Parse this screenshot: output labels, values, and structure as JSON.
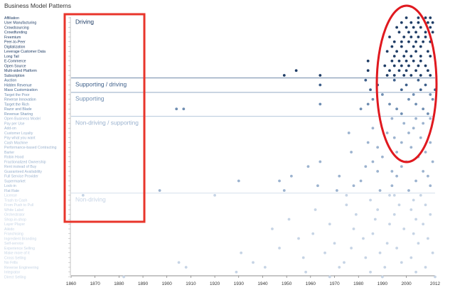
{
  "chart_data": {
    "type": "scatter",
    "title": "Business Model Patterns",
    "xlim": [
      1860,
      2012
    ],
    "x_ticks": [
      1860,
      1870,
      1880,
      1890,
      1900,
      1910,
      1920,
      1930,
      1940,
      1950,
      1960,
      1970,
      1980,
      1990,
      2000,
      2012
    ],
    "patterns": [
      "Affiliation",
      "User Manufacturing",
      "Crowdsourcing",
      "Crowdfunding",
      "Freemium",
      "Peer-to-Peer",
      "Digitalization",
      "Leverage Customer Data",
      "Long Tail",
      "E-Commerce",
      "Open Source",
      "Multi-sided Platform",
      "Subscription",
      "Auction",
      "Hidden Revenue",
      "Mass Customization",
      "Target the Poor",
      "Reverse Innovation",
      "Target the Rich",
      "Razor and Blade",
      "Revenue Sharing",
      "Open Business Model",
      "Pay per Use",
      "Add-on",
      "Customer Loyalty",
      "Pay what you want",
      "Cash Machine",
      "Performance-based Contracting",
      "Barter",
      "Robin Hood",
      "Fractionalized Ownership",
      "Rent instead of Buy",
      "Guaranteed Availability",
      "Full Service Provider",
      "Supermarket",
      "Lock-in",
      "Flat Rate",
      "License",
      "Trash to Cash",
      "From Push to Pull",
      "White Label",
      "Orchestrator",
      "Shop-in-shop",
      "Layer Player",
      "Aikido",
      "Franchising",
      "Ingredient Branding",
      "Self-service",
      "Experience Selling",
      "Make more of it",
      "Cross Selling",
      "No Frills",
      "Reverse Engineering",
      "Integrator",
      "Direct Selling"
    ],
    "bands": [
      {
        "label": "Driving",
        "from": 0,
        "to": 13,
        "color": "#1f3d66"
      },
      {
        "label": "Supporting / driving",
        "from": 13,
        "to": 16,
        "color": "#3d5f8a"
      },
      {
        "label": "Supporting",
        "from": 16,
        "to": 21,
        "color": "#6f8eb2"
      },
      {
        "label": "Non-driving / supporting",
        "from": 21,
        "to": 37,
        "color": "#9cb3cf"
      },
      {
        "label": "Non-driving",
        "from": 37,
        "to": 55,
        "color": "#c6d4e5"
      }
    ],
    "series": [
      {
        "x": [
          2000,
          2005,
          2008,
          2010
        ],
        "y": [
          0,
          0,
          0,
          0
        ]
      },
      {
        "x": [
          1998,
          2002,
          2005,
          2009,
          2011
        ],
        "y": [
          1,
          1,
          1,
          1,
          1
        ]
      },
      {
        "x": [
          1996,
          2000,
          2003,
          2006,
          2010
        ],
        "y": [
          2,
          2,
          2,
          2,
          2
        ]
      },
      {
        "x": [
          1997,
          2001,
          2004,
          2008,
          2011
        ],
        "y": [
          3,
          3,
          3,
          3,
          3
        ]
      },
      {
        "x": [
          1993,
          1999,
          2002,
          2005,
          2008
        ],
        "y": [
          4,
          4,
          4,
          4,
          4
        ]
      },
      {
        "x": [
          1995,
          1998,
          2001,
          2004,
          2007,
          2010
        ],
        "y": [
          5,
          5,
          5,
          5,
          5,
          5
        ]
      },
      {
        "x": [
          1994,
          1998,
          2003,
          2006
        ],
        "y": [
          6,
          6,
          6,
          6
        ]
      },
      {
        "x": [
          1992,
          1996,
          2000,
          2004,
          2009
        ],
        "y": [
          7,
          7,
          7,
          7,
          7
        ]
      },
      {
        "x": [
          1995,
          1999,
          2002,
          2006,
          2010
        ],
        "y": [
          8,
          8,
          8,
          8,
          8
        ]
      },
      {
        "x": [
          1984,
          1994,
          1997,
          2000,
          2003,
          2006
        ],
        "y": [
          9,
          9,
          9,
          9,
          9,
          9
        ]
      },
      {
        "x": [
          1991,
          1995,
          1998,
          2001,
          2005,
          2008
        ],
        "y": [
          10,
          10,
          10,
          10,
          10,
          10
        ]
      },
      {
        "x": [
          1954,
          1984,
          1993,
          1997,
          2000,
          2004,
          2009
        ],
        "y": [
          11,
          11,
          11,
          11,
          11,
          11,
          11
        ]
      },
      {
        "x": [
          1949,
          1964,
          1992,
          1995,
          1999,
          2002,
          2006,
          2010
        ],
        "y": [
          12,
          12,
          12,
          12,
          12,
          12,
          12,
          12
        ]
      },
      {
        "x": [
          1983,
          1995,
          2005
        ],
        "y": [
          13,
          13,
          13
        ]
      },
      {
        "x": [
          1964,
          1988,
          2000,
          2008
        ],
        "y": [
          14,
          14,
          14,
          14
        ]
      },
      {
        "x": [
          1985,
          1998,
          2006,
          2012
        ],
        "y": [
          15,
          15,
          15,
          15
        ]
      },
      {
        "x": [
          1990,
          2003,
          2010
        ],
        "y": [
          16,
          16,
          16
        ]
      },
      {
        "x": [
          1986,
          2001,
          2011
        ],
        "y": [
          17,
          17,
          17
        ]
      },
      {
        "x": [
          1964,
          1984,
          1993,
          2004
        ],
        "y": [
          18,
          18,
          18,
          18
        ]
      },
      {
        "x": [
          1904,
          1907,
          1981,
          1996,
          2007
        ],
        "y": [
          19,
          19,
          19,
          19,
          19
        ]
      },
      {
        "x": [
          1998,
          2009
        ],
        "y": [
          20,
          20
        ]
      },
      {
        "x": [
          1994,
          2004,
          2010
        ],
        "y": [
          21,
          21,
          21
        ]
      },
      {
        "x": [
          1999,
          2007
        ],
        "y": [
          22,
          22
        ]
      },
      {
        "x": [
          1986,
          2003
        ],
        "y": [
          23,
          23
        ]
      },
      {
        "x": [
          1976,
          1992,
          2001
        ],
        "y": [
          24,
          24,
          24
        ]
      },
      {
        "x": [
          1995,
          2006
        ],
        "y": [
          25,
          25
        ]
      },
      {
        "x": [
          1984,
          1998,
          2010
        ],
        "y": [
          26,
          26,
          26
        ]
      },
      {
        "x": [
          1988,
          2002
        ],
        "y": [
          27,
          27
        ]
      },
      {
        "x": [
          1977,
          1996,
          2008
        ],
        "y": [
          28,
          28,
          28
        ]
      },
      {
        "x": [
          1990,
          2005
        ],
        "y": [
          29,
          29
        ]
      },
      {
        "x": [
          1964,
          1986,
          2000,
          2011
        ],
        "y": [
          30,
          30,
          30,
          30
        ]
      },
      {
        "x": [
          1959,
          1983,
          1998
        ],
        "y": [
          31,
          31,
          31
        ]
      },
      {
        "x": [
          1988,
          1994,
          2007
        ],
        "y": [
          32,
          32,
          32
        ]
      },
      {
        "x": [
          1952,
          1972,
          1996,
          2009
        ],
        "y": [
          33,
          33,
          33,
          33
        ]
      },
      {
        "x": [
          1930,
          1947,
          1981,
          2004
        ],
        "y": [
          34,
          34,
          34,
          34
        ]
      },
      {
        "x": [
          1963,
          1978,
          1994,
          2010
        ],
        "y": [
          35,
          35,
          35,
          35
        ]
      },
      {
        "x": [
          1897,
          1949,
          1971,
          1989,
          2001
        ],
        "y": [
          36,
          36,
          36,
          36,
          36
        ]
      },
      {
        "x": [
          1865,
          1920,
          1975,
          1993,
          1995,
          2006
        ],
        "y": [
          37,
          37,
          37,
          37,
          37,
          37
        ]
      },
      {
        "x": [
          1985,
          2003
        ],
        "y": [
          38,
          38
        ]
      },
      {
        "x": [
          1975,
          1997,
          2008
        ],
        "y": [
          39,
          39,
          39
        ]
      },
      {
        "x": [
          1962,
          1988,
          2002
        ],
        "y": [
          40,
          40,
          40
        ]
      },
      {
        "x": [
          1979,
          1995,
          2010
        ],
        "y": [
          41,
          41,
          41
        ]
      },
      {
        "x": [
          1951,
          1987,
          2004
        ],
        "y": [
          42,
          42,
          42
        ]
      },
      {
        "x": [
          1968,
          1993,
          2007
        ],
        "y": [
          43,
          43,
          43
        ]
      },
      {
        "x": [
          1944,
          1978,
          1999
        ],
        "y": [
          44,
          44,
          44
        ]
      },
      {
        "x": [
          1961,
          1986,
          2003
        ],
        "y": [
          45,
          45,
          45
        ]
      },
      {
        "x": [
          1955,
          1982,
          2009
        ],
        "y": [
          46,
          46,
          46
        ]
      },
      {
        "x": [
          1970,
          1992,
          2005
        ],
        "y": [
          47,
          47,
          47
        ]
      },
      {
        "x": [
          1947,
          1977,
          1996
        ],
        "y": [
          48,
          48,
          48
        ]
      },
      {
        "x": [
          1931,
          1966,
          1989,
          2011
        ],
        "y": [
          49,
          49,
          49,
          49
        ]
      },
      {
        "x": [
          1957,
          1983,
          2002
        ],
        "y": [
          50,
          50,
          50
        ]
      },
      {
        "x": [
          1905,
          1936,
          1974,
          1998
        ],
        "y": [
          51,
          51,
          51,
          51
        ]
      },
      {
        "x": [
          1908,
          1941,
          1972,
          1991,
          2008
        ],
        "y": [
          52,
          52,
          52,
          52,
          52
        ]
      },
      {
        "x": [
          1929,
          1958,
          1985,
          2004
        ],
        "y": [
          53,
          53,
          53,
          53
        ]
      },
      {
        "x": [
          1882,
          1968,
          1990,
          2012
        ],
        "y": [
          54,
          54,
          54,
          54
        ]
      }
    ]
  }
}
